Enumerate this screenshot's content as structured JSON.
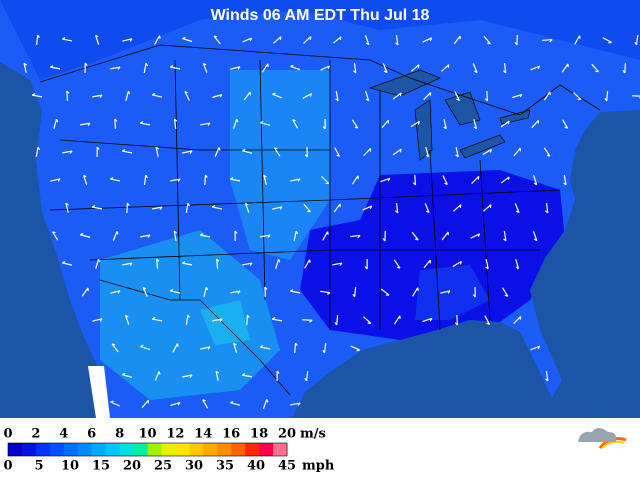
{
  "header": {
    "title": "Winds 06 AM EDT Thu Jul 18"
  },
  "legend": {
    "ms": {
      "unit": "m/s",
      "ticks": [
        0,
        2,
        4,
        6,
        8,
        10,
        12,
        14,
        16,
        18,
        20
      ]
    },
    "mph": {
      "unit": "mph",
      "ticks": [
        0,
        5,
        10,
        15,
        20,
        25,
        30,
        35,
        40,
        45
      ]
    },
    "colors": [
      "#0000c8",
      "#0014e6",
      "#0032ff",
      "#0050ff",
      "#006eff",
      "#008cff",
      "#00aaff",
      "#00c8ff",
      "#00e0e0",
      "#00f0a0",
      "#a0f000",
      "#e6f000",
      "#ffe600",
      "#ffc800",
      "#ffaa00",
      "#ff8c00",
      "#ff6400",
      "#ff2800",
      "#ff0050",
      "#ff7090"
    ]
  }
}
